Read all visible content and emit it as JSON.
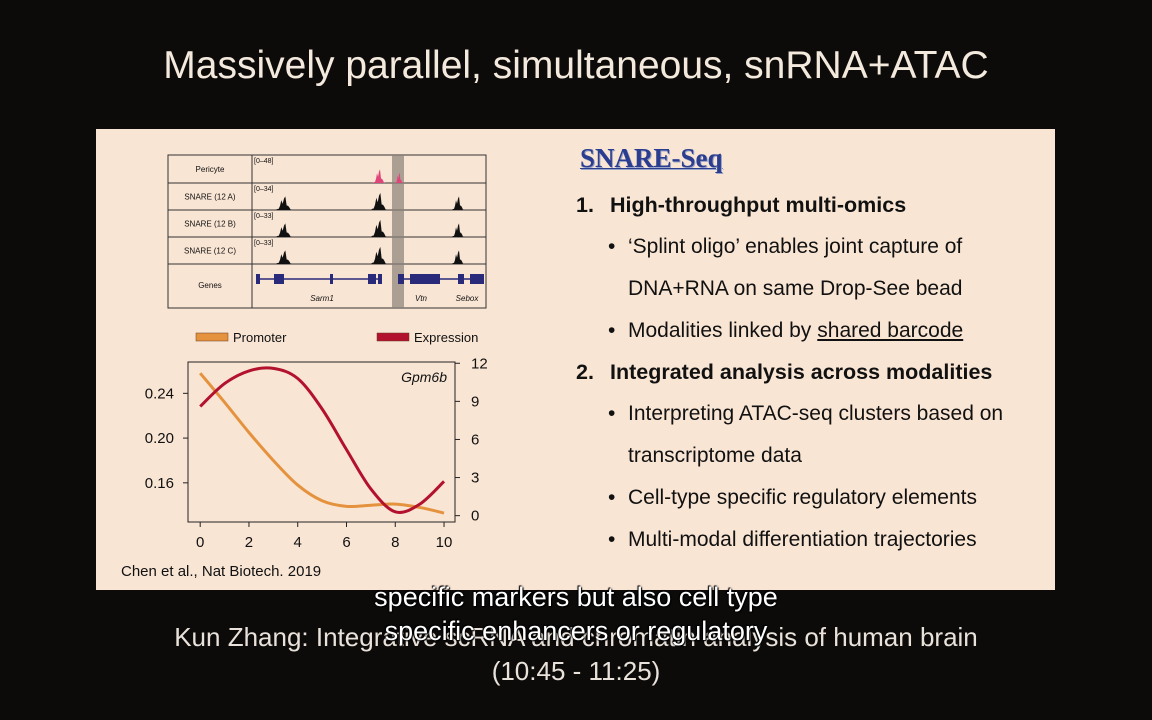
{
  "title": "Massively parallel, simultaneous, snRNA+ATAC",
  "browser": {
    "tracks": [
      {
        "label": "Pericyte",
        "range": "[0–48]"
      },
      {
        "label": "SNARE (12 A)",
        "range": "[0–34]"
      },
      {
        "label": "SNARE (12 B)",
        "range": "[0–33]"
      },
      {
        "label": "SNARE (12 C)",
        "range": "[0–33]"
      }
    ],
    "genes_label": "Genes",
    "genes": [
      "Sarm1",
      "Vtn",
      "Sebox"
    ]
  },
  "chart_data": {
    "type": "line",
    "annotation": "Gpm6b",
    "x": [
      0,
      1,
      2,
      3,
      4,
      5,
      6,
      7,
      8,
      9,
      10
    ],
    "series": [
      {
        "name": "Promoter",
        "color": "#e5923f",
        "values": [
          0.258,
          0.232,
          0.205,
          0.18,
          0.158,
          0.144,
          0.139,
          0.14,
          0.141,
          0.138,
          0.133
        ]
      },
      {
        "name": "Expression",
        "color": "#b3122e",
        "axis": "y2",
        "values": [
          8.6,
          10.4,
          11.4,
          11.6,
          10.8,
          8.4,
          5.2,
          2.1,
          0.3,
          0.9,
          2.7
        ]
      }
    ],
    "xlim": [
      -0.5,
      10.45
    ],
    "xticks": [
      0,
      2,
      4,
      6,
      8,
      10
    ],
    "ylim": [
      0.125,
      0.268
    ],
    "yticks": [
      0.16,
      {
        "value": 0.2,
        "label": "0.20"
      },
      0.24
    ],
    "y2lim": [
      -0.5,
      12.1
    ],
    "y2ticks": [
      0,
      3,
      6,
      9,
      12
    ]
  },
  "citation": "Chen et al., Nat Biotech. 2019",
  "panel": {
    "heading": "SNARE-Seq",
    "items": [
      {
        "number": "1.",
        "text": "High-throughput multi-omics",
        "bullets": [
          {
            "text": "‘Splint oligo’ enables joint capture of DNA+RNA on same Drop-See bead"
          },
          {
            "text": "Modalities linked by",
            "underlined": "shared barcode"
          }
        ]
      },
      {
        "number": "2.",
        "text": "Integrated analysis across modalities",
        "bullets": [
          {
            "text": "Interpreting ATAC-seq clusters based on transcriptome data"
          },
          {
            "text": "Cell-type specific regulatory elements"
          },
          {
            "text": "Multi-modal differentiation trajectories"
          }
        ]
      }
    ]
  },
  "footer": {
    "speaker": "Kun Zhang: Integrative scRNA and chromatin analysis of human brain",
    "time": "(10:45 - 11:25)"
  },
  "subtitles": [
    "specific markers but also cell type",
    "specific enhancers or regulatory"
  ]
}
